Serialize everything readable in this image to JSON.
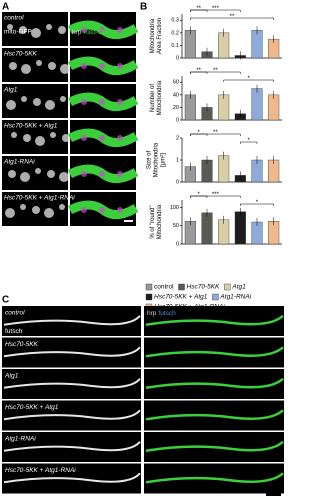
{
  "panel_labels": [
    "A",
    "B",
    "C"
  ],
  "panel_a": {
    "rows": [
      "control",
      "Hsc70-5KK",
      "Atg1",
      "Hsc70-5KK + Atg1",
      "Atg1-RNAi",
      "Hsc70-5KK + Atg1-RNAi"
    ],
    "channel_left": "mito-GFP",
    "channel_right": [
      "hrp",
      "mito-GFP"
    ]
  },
  "chart_data": [
    {
      "type": "bar",
      "ylabel": [
        "Mitochondria",
        "Area Fraction"
      ],
      "values": [
        0.22,
        0.05,
        0.2,
        0.02,
        0.22,
        0.15
      ],
      "ylim": [
        0,
        0.35
      ],
      "yticks": [
        0,
        0.1,
        0.2,
        0.3
      ],
      "significance": [
        "**",
        "***",
        "**"
      ]
    },
    {
      "type": "bar",
      "ylabel": [
        "Number of",
        "Mitochondria"
      ],
      "values": [
        40,
        20,
        40,
        10,
        50,
        40
      ],
      "ylim": [
        0,
        70
      ],
      "yticks": [
        0,
        20,
        40,
        60
      ],
      "significance": [
        "**",
        "**",
        "*"
      ]
    },
    {
      "type": "bar",
      "ylabel": [
        "Size of",
        "Mitochondria",
        "[µm²]"
      ],
      "values": [
        0.7,
        1.0,
        1.2,
        0.3,
        1.0,
        1.0
      ],
      "ylim": [
        0,
        2
      ],
      "yticks": [
        0,
        1,
        2
      ],
      "significance": [
        "*",
        "**",
        "*"
      ]
    },
    {
      "type": "bar",
      "ylabel": [
        "% of \"round\"",
        "Mitochondria"
      ],
      "values": [
        62,
        85,
        66,
        88,
        60,
        62
      ],
      "ylim": [
        0,
        120
      ],
      "yticks": [
        0,
        50,
        100
      ],
      "significance": [
        "*",
        "***",
        "*"
      ]
    }
  ],
  "legend": {
    "names": [
      "control",
      "Hsc70-5KK",
      "Atg1",
      "Hsc70-5KK + Atg1",
      "Atg1-RNAi",
      "Hsc70-5KK + Atg1-RNAi"
    ],
    "colors": [
      "#9a9a9a",
      "#5a5a55",
      "#d8cfa6",
      "#1e1e1e",
      "#8eaad8",
      "#f0b98c"
    ]
  },
  "panel_c": {
    "rows": [
      "control",
      "Hsc70-5KK",
      "Atg1",
      "Hsc70-5KK + Atg1",
      "Atg1-RNAi",
      "Hsc70-5KK + Atg1-RNAi"
    ],
    "channel_left": "futsch",
    "channel_right": [
      "hrp",
      "futsch"
    ]
  }
}
